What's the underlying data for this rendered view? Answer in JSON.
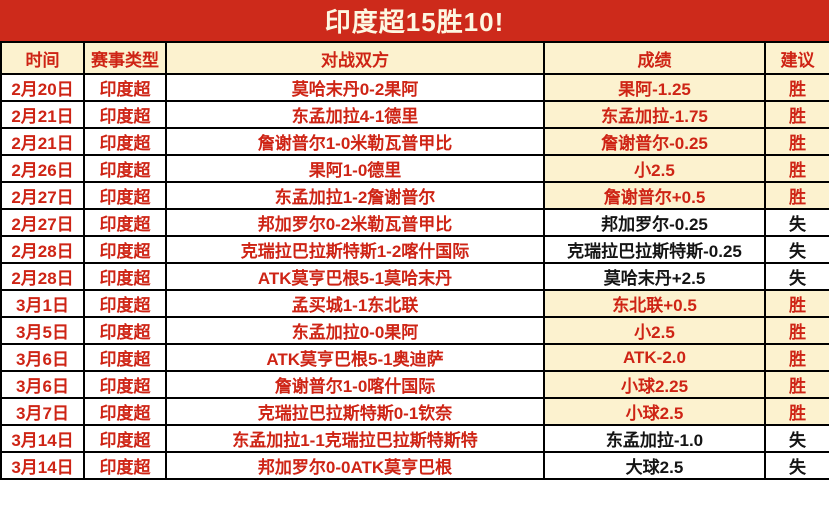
{
  "title": "印度超15胜10!",
  "columns": [
    "时间",
    "赛事类型",
    "对战双方",
    "成绩",
    "建议"
  ],
  "rows": [
    {
      "date": "2月20日",
      "league": "印度超",
      "match": "莫哈末丹0-2果阿",
      "result": "果阿-1.25",
      "verdict": "胜"
    },
    {
      "date": "2月21日",
      "league": "印度超",
      "match": "东孟加拉4-1德里",
      "result": "东孟加拉-1.75",
      "verdict": "胜"
    },
    {
      "date": "2月21日",
      "league": "印度超",
      "match": "詹谢普尔1-0米勒瓦普甲比",
      "result": "詹谢普尔-0.25",
      "verdict": "胜"
    },
    {
      "date": "2月26日",
      "league": "印度超",
      "match": "果阿1-0德里",
      "result": "小2.5",
      "verdict": "胜"
    },
    {
      "date": "2月27日",
      "league": "印度超",
      "match": "东孟加拉1-2詹谢普尔",
      "result": "詹谢普尔+0.5",
      "verdict": "胜"
    },
    {
      "date": "2月27日",
      "league": "印度超",
      "match": "邦加罗尔0-2米勒瓦普甲比",
      "result": "邦加罗尔-0.25",
      "verdict": "失"
    },
    {
      "date": "2月28日",
      "league": "印度超",
      "match": "克瑞拉巴拉斯特斯1-2喀什国际",
      "result": "克瑞拉巴拉斯特斯-0.25",
      "verdict": "失"
    },
    {
      "date": "2月28日",
      "league": "印度超",
      "match": "ATK莫亨巴根5-1莫哈末丹",
      "result": "莫哈末丹+2.5",
      "verdict": "失"
    },
    {
      "date": "3月1日",
      "league": "印度超",
      "match": "孟买城1-1东北联",
      "result": "东北联+0.5",
      "verdict": "胜"
    },
    {
      "date": "3月5日",
      "league": "印度超",
      "match": "东孟加拉0-0果阿",
      "result": "小2.5",
      "verdict": "胜"
    },
    {
      "date": "3月6日",
      "league": "印度超",
      "match": "ATK莫亨巴根5-1奥迪萨",
      "result": "ATK-2.0",
      "verdict": "胜"
    },
    {
      "date": "3月6日",
      "league": "印度超",
      "match": "詹谢普尔1-0喀什国际",
      "result": "小球2.25",
      "verdict": "胜"
    },
    {
      "date": "3月7日",
      "league": "印度超",
      "match": "克瑞拉巴拉斯特斯0-1钦奈",
      "result": "小球2.5",
      "verdict": "胜"
    },
    {
      "date": "3月14日",
      "league": "印度超",
      "match": "东孟加拉1-1克瑞拉巴拉斯特斯特",
      "result": "东孟加拉-1.0",
      "verdict": "失"
    },
    {
      "date": "3月14日",
      "league": "印度超",
      "match": "邦加罗尔0-0ATK莫亨巴根",
      "result": "大球2.5",
      "verdict": "失"
    }
  ],
  "legend": {
    "win_label": "胜",
    "loss_label": "失"
  },
  "colors": {
    "banner_red": "#cd2a1b",
    "text_red": "#ce2415",
    "cream": "#fcf2cf",
    "loss_black": "#141414",
    "border_black": "#000000",
    "title_text": "#fdf7e2"
  }
}
